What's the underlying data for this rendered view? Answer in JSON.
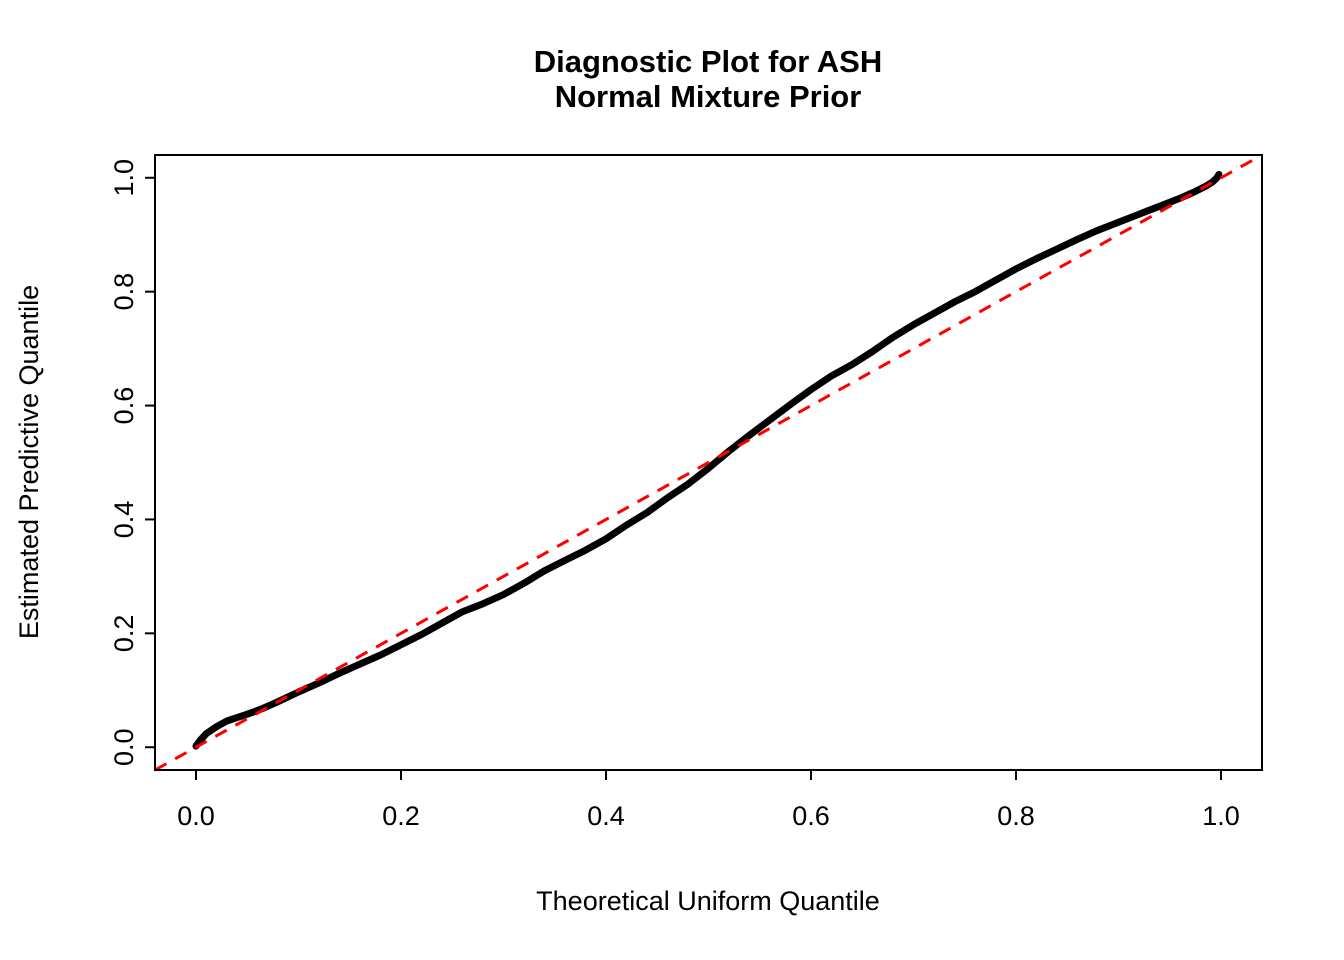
{
  "figure": {
    "background": "#FFFFFF"
  },
  "chart_data": {
    "type": "scatter",
    "title_lines": [
      "Diagnostic Plot for ASH",
      "Normal Mixture Prior"
    ],
    "xlabel": "Theoretical Uniform Quantile",
    "ylabel": "Estimated Predictive Quantile",
    "xlim": [
      -0.04,
      1.04
    ],
    "ylim": [
      -0.04,
      1.04
    ],
    "x_ticks": [
      0.0,
      0.2,
      0.4,
      0.6,
      0.8,
      1.0
    ],
    "x_tick_labels": [
      "0.0",
      "0.2",
      "0.4",
      "0.6",
      "0.8",
      "1.0"
    ],
    "y_ticks": [
      0.0,
      0.2,
      0.4,
      0.6,
      0.8,
      1.0
    ],
    "y_tick_labels": [
      "0.0",
      "0.2",
      "0.4",
      "0.6",
      "0.8",
      "1.0"
    ],
    "grid": false,
    "legend": null,
    "colors": {
      "curve": "#000000",
      "reference_line": "#FF0000",
      "frame": "#000000",
      "background": "#FFFFFF"
    },
    "series": [
      {
        "name": "estimated-predictive-quantiles",
        "style": "thick-point-curve",
        "color": "#000000",
        "x": [
          0.0,
          0.004,
          0.01,
          0.02,
          0.03,
          0.04,
          0.05,
          0.065,
          0.08,
          0.1,
          0.12,
          0.14,
          0.16,
          0.18,
          0.2,
          0.22,
          0.24,
          0.26,
          0.28,
          0.3,
          0.32,
          0.34,
          0.36,
          0.38,
          0.4,
          0.42,
          0.44,
          0.46,
          0.48,
          0.5,
          0.52,
          0.54,
          0.56,
          0.58,
          0.6,
          0.62,
          0.64,
          0.66,
          0.68,
          0.7,
          0.72,
          0.74,
          0.76,
          0.78,
          0.8,
          0.82,
          0.84,
          0.86,
          0.88,
          0.9,
          0.92,
          0.94,
          0.96,
          0.975,
          0.985,
          0.992,
          0.996,
          0.998
        ],
        "y": [
          0.002,
          0.012,
          0.024,
          0.036,
          0.046,
          0.052,
          0.058,
          0.068,
          0.08,
          0.097,
          0.113,
          0.13,
          0.146,
          0.162,
          0.18,
          0.198,
          0.218,
          0.238,
          0.252,
          0.268,
          0.288,
          0.31,
          0.328,
          0.346,
          0.366,
          0.39,
          0.412,
          0.438,
          0.462,
          0.49,
          0.52,
          0.548,
          0.575,
          0.602,
          0.628,
          0.652,
          0.672,
          0.695,
          0.72,
          0.742,
          0.762,
          0.782,
          0.8,
          0.82,
          0.84,
          0.858,
          0.875,
          0.892,
          0.908,
          0.922,
          0.936,
          0.95,
          0.964,
          0.976,
          0.985,
          0.993,
          1.0,
          1.006
        ]
      },
      {
        "name": "identity-reference-line",
        "style": "dashed",
        "color": "#FF0000",
        "x": [
          -0.04,
          1.04
        ],
        "y": [
          -0.04,
          1.04
        ]
      }
    ]
  }
}
